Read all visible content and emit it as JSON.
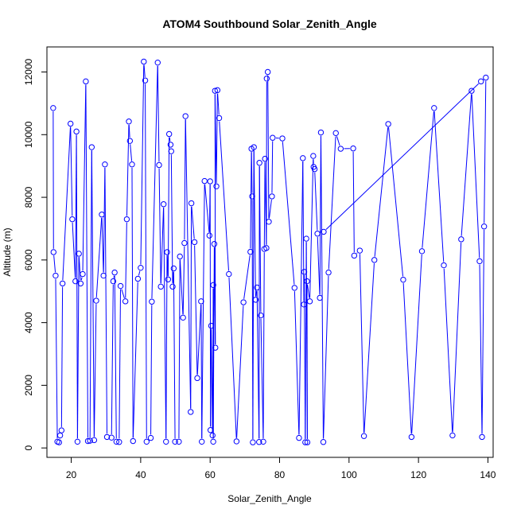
{
  "chart_data": {
    "type": "line",
    "title": "ATOM4 Southbound Solar_Zenith_Angle",
    "xlabel": "Solar_Zenith_Angle",
    "ylabel": "Altitude (m)",
    "xlim": [
      13,
      141.5
    ],
    "ylim": [
      -300,
      12800
    ],
    "xticks": [
      20,
      40,
      60,
      80,
      100,
      120,
      140
    ],
    "yticks": [
      0,
      2000,
      4000,
      6000,
      8000,
      10000,
      12000
    ],
    "grid": false,
    "legend": "none",
    "series_style": "points-and-lines",
    "colors": {
      "series": "#0000ff",
      "axis": "#000000"
    },
    "points": [
      [
        14.8,
        10850
      ],
      [
        14.9,
        6250
      ],
      [
        15.5,
        5500
      ],
      [
        16.0,
        200
      ],
      [
        16.5,
        180
      ],
      [
        16.8,
        400
      ],
      [
        17.2,
        560
      ],
      [
        17.5,
        5250
      ],
      [
        19.8,
        10350
      ],
      [
        20.3,
        7300
      ],
      [
        21.2,
        5320
      ],
      [
        21.5,
        10100
      ],
      [
        21.8,
        200
      ],
      [
        22.2,
        6200
      ],
      [
        22.7,
        5250
      ],
      [
        23.3,
        5550
      ],
      [
        24.2,
        11700
      ],
      [
        24.8,
        220
      ],
      [
        25.4,
        230
      ],
      [
        25.9,
        9600
      ],
      [
        26.6,
        250
      ],
      [
        27.2,
        4700
      ],
      [
        28.8,
        7450
      ],
      [
        29.3,
        5500
      ],
      [
        29.7,
        9050
      ],
      [
        30.3,
        350
      ],
      [
        31.6,
        330
      ],
      [
        32.1,
        5320
      ],
      [
        32.5,
        5600
      ],
      [
        33.0,
        200
      ],
      [
        33.8,
        190
      ],
      [
        34.2,
        5170
      ],
      [
        35.6,
        4680
      ],
      [
        36.0,
        7300
      ],
      [
        36.6,
        10420
      ],
      [
        36.9,
        9800
      ],
      [
        37.5,
        9050
      ],
      [
        37.8,
        220
      ],
      [
        39.2,
        5400
      ],
      [
        40.0,
        5750
      ],
      [
        40.9,
        12330
      ],
      [
        41.3,
        11730
      ],
      [
        41.7,
        200
      ],
      [
        42.9,
        320
      ],
      [
        43.2,
        4670
      ],
      [
        44.9,
        12300
      ],
      [
        45.3,
        9030
      ],
      [
        45.8,
        5150
      ],
      [
        46.6,
        7780
      ],
      [
        47.3,
        200
      ],
      [
        47.6,
        6250
      ],
      [
        47.9,
        5380
      ],
      [
        48.2,
        10020
      ],
      [
        48.6,
        9680
      ],
      [
        48.8,
        9470
      ],
      [
        49.2,
        5150
      ],
      [
        49.5,
        5730
      ],
      [
        49.9,
        200
      ],
      [
        51.0,
        200
      ],
      [
        51.3,
        6110
      ],
      [
        52.2,
        4160
      ],
      [
        52.6,
        6540
      ],
      [
        52.9,
        10590
      ],
      [
        54.4,
        1150
      ],
      [
        54.6,
        7810
      ],
      [
        55.5,
        6570
      ],
      [
        56.3,
        2230
      ],
      [
        57.4,
        4680
      ],
      [
        57.6,
        200
      ],
      [
        58.4,
        8520
      ],
      [
        59.8,
        6780
      ],
      [
        60.0,
        8510
      ],
      [
        60.1,
        570
      ],
      [
        60.3,
        3900
      ],
      [
        60.7,
        400
      ],
      [
        60.9,
        5200
      ],
      [
        60.9,
        200
      ],
      [
        61.2,
        6510
      ],
      [
        61.5,
        3200
      ],
      [
        61.4,
        11400
      ],
      [
        61.8,
        8350
      ],
      [
        62.1,
        11420
      ],
      [
        62.6,
        10530
      ],
      [
        65.4,
        5550
      ],
      [
        67.6,
        210
      ],
      [
        69.6,
        4650
      ],
      [
        71.6,
        6260
      ],
      [
        71.9,
        9550
      ],
      [
        72.1,
        8030
      ],
      [
        72.3,
        180
      ],
      [
        72.6,
        9600
      ],
      [
        73.1,
        4730
      ],
      [
        73.5,
        5120
      ],
      [
        74.1,
        190
      ],
      [
        74.2,
        9100
      ],
      [
        74.6,
        4230
      ],
      [
        75.3,
        200
      ],
      [
        75.6,
        6350
      ],
      [
        75.8,
        9230
      ],
      [
        76.2,
        6380
      ],
      [
        76.3,
        11790
      ],
      [
        76.6,
        12000
      ],
      [
        76.9,
        7220
      ],
      [
        77.8,
        8030
      ],
      [
        78.0,
        9900
      ],
      [
        80.8,
        9880
      ],
      [
        84.3,
        5110
      ],
      [
        85.6,
        320
      ],
      [
        86.7,
        9250
      ],
      [
        87.0,
        4580
      ],
      [
        87.1,
        5620
      ],
      [
        87.4,
        180
      ],
      [
        87.7,
        6680
      ],
      [
        88.0,
        180
      ],
      [
        87.9,
        5320
      ],
      [
        88.7,
        4680
      ],
      [
        89.7,
        9320
      ],
      [
        89.8,
        8970
      ],
      [
        90.1,
        8900
      ],
      [
        90.9,
        6840
      ],
      [
        91.6,
        4790
      ],
      [
        91.9,
        10070
      ],
      [
        92.6,
        190
      ],
      [
        94.1,
        5600
      ],
      [
        96.2,
        10050
      ],
      [
        97.6,
        9550
      ],
      [
        101.2,
        9560
      ],
      [
        101.5,
        6140
      ],
      [
        103.1,
        6300
      ],
      [
        104.3,
        380
      ],
      [
        107.3,
        6000
      ],
      [
        111.3,
        10340
      ],
      [
        115.6,
        5370
      ],
      [
        118.0,
        350
      ],
      [
        121.0,
        6280
      ],
      [
        124.5,
        10850
      ],
      [
        127.3,
        5830
      ],
      [
        129.8,
        400
      ],
      [
        132.3,
        6660
      ],
      [
        135.3,
        11400
      ],
      [
        137.6,
        5960
      ],
      [
        138.3,
        350
      ],
      [
        138.9,
        7070
      ],
      [
        139.4,
        11820
      ],
      [
        138.0,
        11700
      ],
      [
        92.7,
        6900
      ]
    ]
  }
}
